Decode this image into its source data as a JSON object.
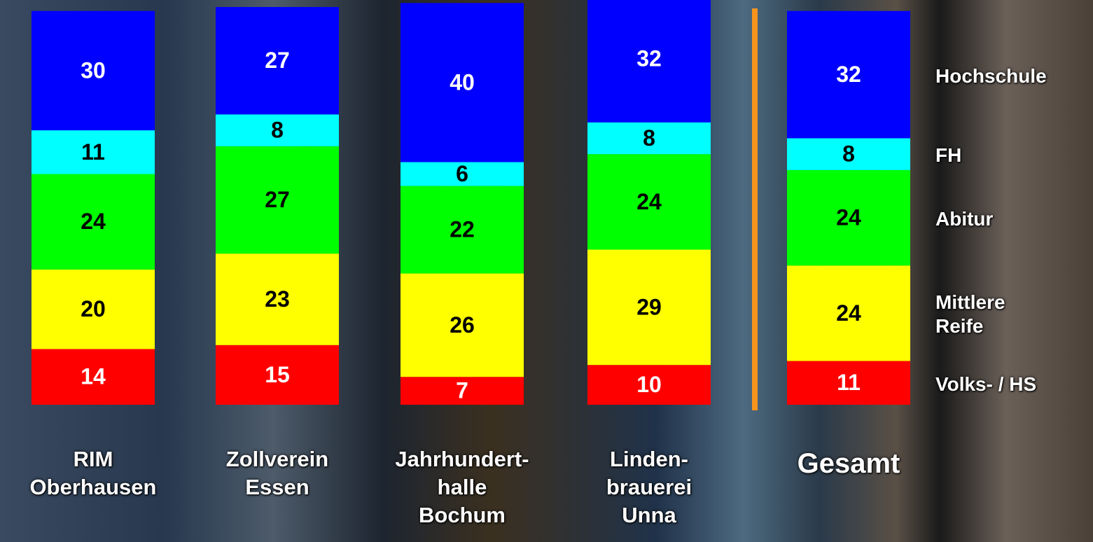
{
  "chart_data": {
    "type": "stacked-bar",
    "categories": [
      "RIM\nOberhausen",
      "Zollverein\nEssen",
      "Jahrhundert-\nhalle\nBochum",
      "Linden-\nbrauerei\nUnna",
      "Gesamt"
    ],
    "series": [
      {
        "name": "Volks- / HS",
        "color": "#ff0000",
        "values": [
          14,
          15,
          7,
          10,
          11
        ]
      },
      {
        "name": "Mittlere\nReife",
        "color": "#ffff00",
        "values": [
          20,
          23,
          26,
          29,
          24
        ]
      },
      {
        "name": "Abitur",
        "color": "#00ff00",
        "values": [
          24,
          27,
          22,
          24,
          24
        ]
      },
      {
        "name": "FH",
        "color": "#00ffff",
        "values": [
          11,
          8,
          6,
          8,
          8
        ]
      },
      {
        "name": "Hochschule",
        "color": "#0000ff",
        "values": [
          30,
          27,
          40,
          32,
          32
        ]
      }
    ],
    "ylim": [
      0,
      100
    ]
  }
}
